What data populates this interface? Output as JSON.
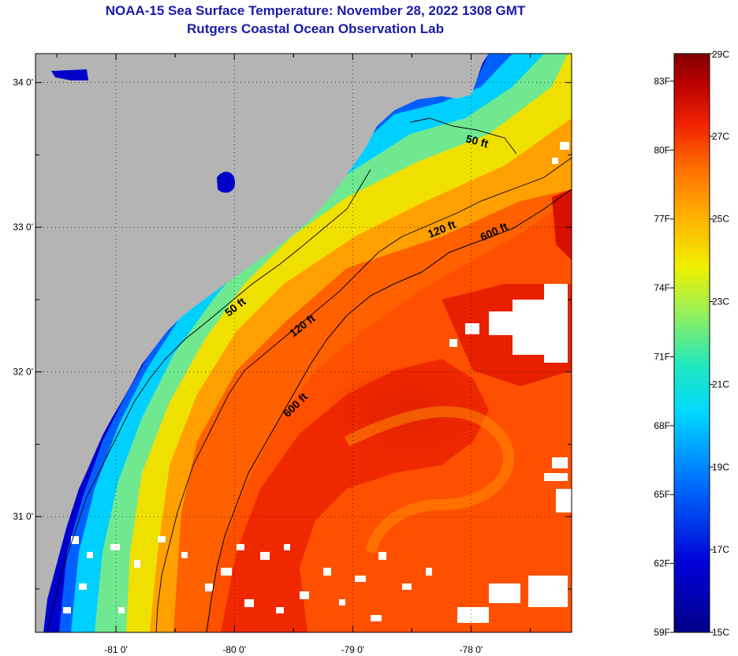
{
  "title": "NOAA-15 Sea Surface Temperature:  November 28, 2022 1308 GMT",
  "subtitle": "Rutgers Coastal Ocean Observation Lab",
  "map": {
    "lon_range": [
      -81.68,
      -77.15
    ],
    "lat_range": [
      30.2,
      34.2
    ],
    "lat_ticks": [
      {
        "value": 34.0,
        "label": "34 0'"
      },
      {
        "value": 33.0,
        "label": "33 0'"
      },
      {
        "value": 32.0,
        "label": "32 0'"
      },
      {
        "value": 31.0,
        "label": "31 0'"
      }
    ],
    "lon_ticks": [
      {
        "value": -81.0,
        "label": "-81 0'"
      },
      {
        "value": -80.0,
        "label": "-80 0'"
      },
      {
        "value": -79.0,
        "label": "-79 0'"
      },
      {
        "value": -78.0,
        "label": "-78 0'"
      }
    ],
    "contour_labels": [
      {
        "text": "50 ft"
      },
      {
        "text": "50 ft"
      },
      {
        "text": "120 ft"
      },
      {
        "text": "120 ft"
      },
      {
        "text": "600 ft"
      },
      {
        "text": "600 ft"
      }
    ],
    "colors": {
      "land": "#b4b4b4",
      "cloud": "#ffffff"
    }
  },
  "colorbar": {
    "celsius_labels": [
      "29C",
      "27C",
      "25C",
      "23C",
      "21C",
      "19C",
      "17C",
      "15C"
    ],
    "fahrenheit_labels": [
      "83F",
      "80F",
      "77F",
      "74F",
      "71F",
      "68F",
      "65F",
      "62F",
      "59F"
    ],
    "c_range": [
      15,
      29
    ]
  }
}
